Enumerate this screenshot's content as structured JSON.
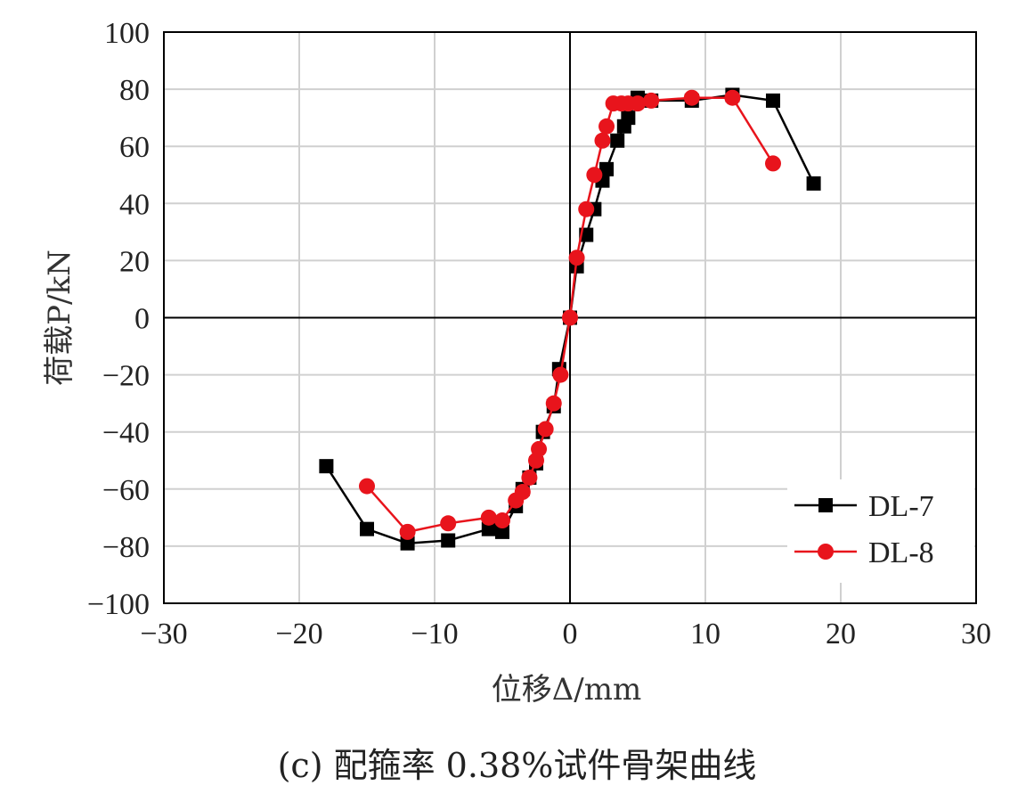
{
  "caption": "(c) 配箍率 0.38%试件骨架曲线",
  "chart_data": {
    "type": "line",
    "xlabel": "位移Δ/mm",
    "ylabel": "荷载P/kN",
    "xlim": [
      -30,
      30
    ],
    "ylim": [
      -100,
      100
    ],
    "x_ticks": [
      -30,
      -20,
      -10,
      0,
      10,
      20,
      30
    ],
    "y_ticks": [
      -100,
      -80,
      -60,
      -40,
      -20,
      0,
      20,
      40,
      60,
      80,
      100
    ],
    "x_tick_labels": [
      "−30",
      "−20",
      "−10",
      "0",
      "10",
      "20",
      "30"
    ],
    "y_tick_labels": [
      "−100",
      "−80",
      "−60",
      "−40",
      "−20",
      "0",
      "20",
      "40",
      "60",
      "80",
      "100"
    ],
    "grid": true,
    "legend_position": "bottom-right",
    "series": [
      {
        "name": "DL-7",
        "color": "#000000",
        "marker": "square",
        "points": [
          [
            -18,
            -52
          ],
          [
            -15,
            -74
          ],
          [
            -12,
            -79
          ],
          [
            -9,
            -78
          ],
          [
            -6,
            -74
          ],
          [
            -5,
            -75
          ],
          [
            -4,
            -66
          ],
          [
            -3.5,
            -60
          ],
          [
            -3,
            -56
          ],
          [
            -2.5,
            -51
          ],
          [
            -2,
            -40
          ],
          [
            -1.2,
            -31
          ],
          [
            -0.8,
            -18
          ],
          [
            0,
            0
          ],
          [
            0.5,
            18
          ],
          [
            1.2,
            29
          ],
          [
            1.8,
            38
          ],
          [
            2.4,
            48
          ],
          [
            2.7,
            52
          ],
          [
            3.5,
            62
          ],
          [
            4,
            67
          ],
          [
            4.3,
            70
          ],
          [
            5,
            77
          ],
          [
            6,
            76
          ],
          [
            9,
            76
          ],
          [
            12,
            78
          ],
          [
            15,
            76
          ],
          [
            18,
            47
          ]
        ]
      },
      {
        "name": "DL-8",
        "color": "#e8141c",
        "marker": "circle",
        "points": [
          [
            -15,
            -59
          ],
          [
            -12,
            -75
          ],
          [
            -9,
            -72
          ],
          [
            -6,
            -70
          ],
          [
            -5,
            -71
          ],
          [
            -4,
            -64
          ],
          [
            -3.5,
            -61
          ],
          [
            -3,
            -56
          ],
          [
            -2.5,
            -50
          ],
          [
            -2.3,
            -46
          ],
          [
            -1.8,
            -39
          ],
          [
            -1.2,
            -30
          ],
          [
            -0.7,
            -20
          ],
          [
            0,
            0
          ],
          [
            0.5,
            21
          ],
          [
            1.2,
            38
          ],
          [
            1.8,
            50
          ],
          [
            2.4,
            62
          ],
          [
            2.7,
            67
          ],
          [
            3.2,
            75
          ],
          [
            3.8,
            75
          ],
          [
            4.3,
            75
          ],
          [
            5,
            75
          ],
          [
            6,
            76
          ],
          [
            9,
            77
          ],
          [
            12,
            77
          ],
          [
            15,
            54
          ]
        ]
      }
    ]
  }
}
